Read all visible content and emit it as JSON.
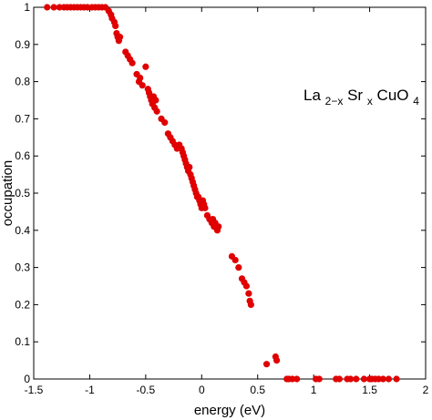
{
  "chart_data": {
    "type": "scatter",
    "title": "",
    "xlabel": "energy (eV)",
    "ylabel": "occupation",
    "xlim": [
      -1.5,
      2
    ],
    "ylim": [
      0,
      1
    ],
    "xticks": [
      "-1.5",
      "-1",
      "-0.5",
      "0",
      "0.5",
      "1",
      "1.5",
      "2"
    ],
    "yticks": [
      "0",
      "0.1",
      "0.2",
      "0.3",
      "0.4",
      "0.5",
      "0.6",
      "0.7",
      "0.8",
      "0.9",
      "1"
    ],
    "grid": false,
    "marker_color": "#e00000",
    "annotation": {
      "base": "La",
      "sub1": "2−x",
      "mid": "Sr",
      "sub2": "x",
      "tail": "CuO",
      "sub3": "4"
    },
    "series": [
      {
        "x": [
          -1.38,
          -1.32,
          -1.27,
          -1.23,
          -1.2,
          -1.17,
          -1.14,
          -1.11,
          -1.08,
          -1.05,
          -1.02,
          -0.98,
          -0.95,
          -0.92,
          -0.89,
          -0.86,
          -0.83,
          -0.81,
          -0.8,
          -0.78,
          -0.77,
          -0.76,
          -0.75,
          -0.74,
          -0.73,
          -0.68,
          -0.66,
          -0.64,
          -0.62,
          -0.58,
          -0.56,
          -0.55,
          -0.53,
          -0.5,
          -0.48,
          -0.47,
          -0.46,
          -0.45,
          -0.44,
          -0.43,
          -0.42,
          -0.41,
          -0.4,
          -0.36,
          -0.33,
          -0.3,
          -0.28,
          -0.26,
          -0.24,
          -0.22,
          -0.2,
          -0.18,
          -0.17,
          -0.16,
          -0.15,
          -0.14,
          -0.13,
          -0.12,
          -0.11,
          -0.1,
          -0.09,
          -0.08,
          -0.07,
          -0.06,
          -0.05,
          -0.04,
          -0.03,
          -0.02,
          -0.01,
          0.0,
          0.01,
          0.02,
          0.03,
          0.05,
          0.07,
          0.09,
          0.1,
          0.11,
          0.12,
          0.13,
          0.14,
          0.15,
          0.27,
          0.3,
          0.33,
          0.36,
          0.38,
          0.4,
          0.42,
          0.43,
          0.44,
          0.58,
          0.66,
          0.67,
          0.76,
          0.78,
          0.81,
          0.85,
          1.02,
          1.05,
          1.2,
          1.23,
          1.3,
          1.33,
          1.38,
          1.45,
          1.5,
          1.52,
          1.55,
          1.58,
          1.62,
          1.67,
          1.74
        ],
        "y": [
          1,
          1,
          1,
          1,
          1,
          1,
          1,
          1,
          1,
          1,
          1,
          1,
          1,
          1,
          1,
          1,
          0.99,
          0.98,
          0.97,
          0.96,
          0.95,
          0.93,
          0.92,
          0.91,
          0.92,
          0.88,
          0.87,
          0.86,
          0.85,
          0.82,
          0.8,
          0.81,
          0.79,
          0.84,
          0.78,
          0.77,
          0.76,
          0.75,
          0.74,
          0.76,
          0.73,
          0.75,
          0.72,
          0.7,
          0.69,
          0.66,
          0.65,
          0.64,
          0.63,
          0.62,
          0.63,
          0.62,
          0.61,
          0.6,
          0.59,
          0.58,
          0.57,
          0.56,
          0.57,
          0.55,
          0.54,
          0.53,
          0.52,
          0.51,
          0.5,
          0.49,
          0.49,
          0.48,
          0.47,
          0.46,
          0.48,
          0.47,
          0.46,
          0.44,
          0.43,
          0.42,
          0.43,
          0.41,
          0.42,
          0.41,
          0.4,
          0.41,
          0.33,
          0.32,
          0.3,
          0.27,
          0.26,
          0.25,
          0.23,
          0.21,
          0.2,
          0.04,
          0.06,
          0.05,
          0,
          0,
          0,
          0,
          0,
          0,
          0,
          0,
          0,
          0,
          0,
          0,
          0,
          0,
          0,
          0,
          0,
          0,
          0
        ]
      }
    ]
  }
}
